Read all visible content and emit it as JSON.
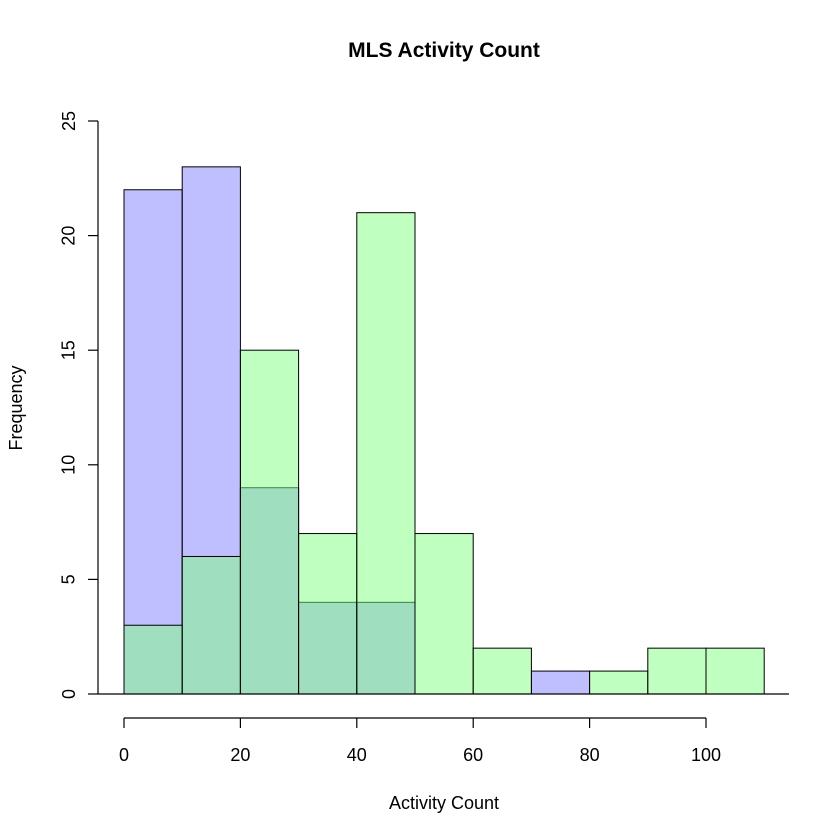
{
  "chart_data": {
    "type": "bar",
    "title": "MLS Activity Count",
    "xlabel": "Activity Count",
    "ylabel": "Frequency",
    "xlim": [
      0,
      110
    ],
    "ylim": [
      0,
      25
    ],
    "xticks": [
      0,
      20,
      40,
      60,
      80,
      100
    ],
    "yticks": [
      0,
      5,
      10,
      15,
      20,
      25
    ],
    "bin_edges": [
      0,
      10,
      20,
      30,
      40,
      50,
      60,
      70,
      80,
      90,
      100,
      110
    ],
    "series": [
      {
        "color": "#8080ff",
        "opacity": 0.5,
        "values": [
          22,
          23,
          9,
          4,
          4,
          0,
          0,
          1,
          0,
          0,
          0
        ]
      },
      {
        "color": "#80ff80",
        "opacity": 0.5,
        "values": [
          3,
          6,
          15,
          7,
          21,
          7,
          2,
          0,
          1,
          2,
          2
        ]
      }
    ],
    "grid": false,
    "legend": "none"
  }
}
